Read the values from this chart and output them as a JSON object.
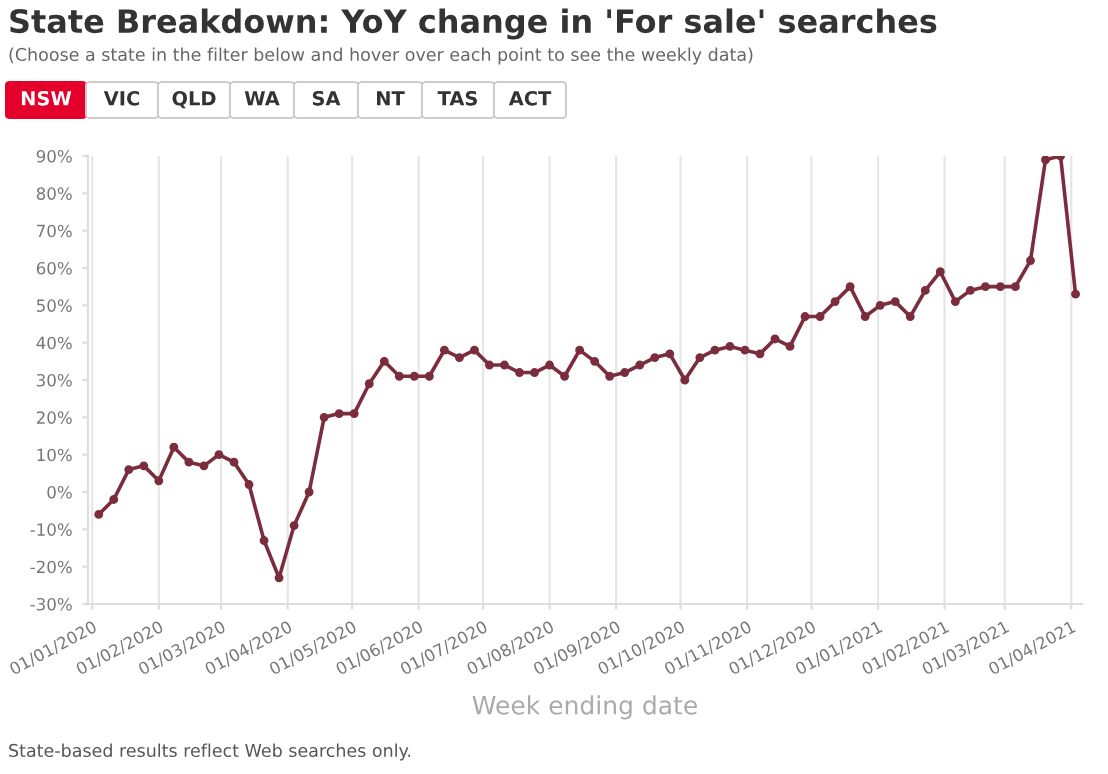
{
  "chart_data": {
    "type": "line",
    "title": "State Breakdown: YoY change in 'For sale' searches",
    "subtitle": "(Choose a state in the filter below and hover over each point to see the weekly data)",
    "xlabel": "Week ending date",
    "annotations": [
      "NSW",
      "VIC",
      "QLD",
      "WA",
      "SA",
      "NT",
      "TAS",
      "ACT",
      "State-based results reflect Web searches only."
    ],
    "x": [
      "2020-01-04",
      "2020-01-11",
      "2020-01-18",
      "2020-01-25",
      "2020-02-01",
      "2020-02-08",
      "2020-02-15",
      "2020-02-22",
      "2020-02-29",
      "2020-03-07",
      "2020-03-14",
      "2020-03-21",
      "2020-03-28",
      "2020-04-04",
      "2020-04-11",
      "2020-04-18",
      "2020-04-25",
      "2020-05-02",
      "2020-05-09",
      "2020-05-16",
      "2020-05-23",
      "2020-05-30",
      "2020-06-06",
      "2020-06-13",
      "2020-06-20",
      "2020-06-27",
      "2020-07-04",
      "2020-07-11",
      "2020-07-18",
      "2020-07-25",
      "2020-08-01",
      "2020-08-08",
      "2020-08-15",
      "2020-08-22",
      "2020-08-29",
      "2020-09-05",
      "2020-09-12",
      "2020-09-19",
      "2020-09-26",
      "2020-10-03",
      "2020-10-10",
      "2020-10-17",
      "2020-10-24",
      "2020-10-31",
      "2020-11-07",
      "2020-11-14",
      "2020-11-21",
      "2020-11-28",
      "2020-12-05",
      "2020-12-12",
      "2020-12-19",
      "2020-12-26",
      "2021-01-02",
      "2021-01-09",
      "2021-01-16",
      "2021-01-23",
      "2021-01-30",
      "2021-02-06",
      "2021-02-13",
      "2021-02-20",
      "2021-02-27",
      "2021-03-06",
      "2021-03-13",
      "2021-03-20",
      "2021-03-27",
      "2021-04-03"
    ],
    "series": [
      {
        "color": "#7b2d3e",
        "values": [
          -6,
          -2,
          6,
          7,
          3,
          12,
          8,
          7,
          10,
          8,
          2,
          -13,
          -23,
          -9,
          0,
          20,
          21,
          21,
          29,
          35,
          31,
          31,
          31,
          38,
          36,
          38,
          34,
          34,
          32,
          32,
          34,
          31,
          38,
          35,
          31,
          32,
          34,
          36,
          37,
          30,
          36,
          38,
          39,
          38,
          37,
          41,
          39,
          47,
          47,
          51,
          55,
          47,
          50,
          51,
          47,
          54,
          59,
          51,
          54,
          55,
          55,
          55,
          62,
          89,
          90,
          53
        ]
      }
    ],
    "marker": "circle",
    "line_style": "solid",
    "grid": "x",
    "legend": false,
    "xlim": [
      "2019-12-30",
      "2021-04-06"
    ],
    "xticks": [
      {
        "value": "2020-01-01",
        "label": "01/01/2020"
      },
      {
        "value": "2020-02-01",
        "label": "01/02/2020"
      },
      {
        "value": "2020-03-01",
        "label": "01/03/2020"
      },
      {
        "value": "2020-04-01",
        "label": "01/04/2020"
      },
      {
        "value": "2020-05-01",
        "label": "01/05/2020"
      },
      {
        "value": "2020-06-01",
        "label": "01/06/2020"
      },
      {
        "value": "2020-07-01",
        "label": "01/07/2020"
      },
      {
        "value": "2020-08-01",
        "label": "01/08/2020"
      },
      {
        "value": "2020-09-01",
        "label": "01/09/2020"
      },
      {
        "value": "2020-10-01",
        "label": "01/10/2020"
      },
      {
        "value": "2020-11-01",
        "label": "01/11/2020"
      },
      {
        "value": "2020-12-01",
        "label": "01/12/2020"
      },
      {
        "value": "2021-01-01",
        "label": "01/01/2021"
      },
      {
        "value": "2021-02-01",
        "label": "01/02/2021"
      },
      {
        "value": "2021-03-01",
        "label": "01/03/2021"
      },
      {
        "value": "2021-04-01",
        "label": "01/04/2021"
      }
    ],
    "ylim": [
      -30,
      90
    ],
    "yticks": [
      {
        "value": -30,
        "label": "-30%"
      },
      {
        "value": -20,
        "label": "-20%"
      },
      {
        "value": -10,
        "label": "-10%"
      },
      {
        "value": 0,
        "label": "0%"
      },
      {
        "value": 10,
        "label": "10%"
      },
      {
        "value": 20,
        "label": "20%"
      },
      {
        "value": 30,
        "label": "30%"
      },
      {
        "value": 40,
        "label": "40%"
      },
      {
        "value": 50,
        "label": "50%"
      },
      {
        "value": 60,
        "label": "60%"
      },
      {
        "value": 70,
        "label": "70%"
      },
      {
        "value": 80,
        "label": "80%"
      },
      {
        "value": 90,
        "label": "90%"
      }
    ]
  }
}
